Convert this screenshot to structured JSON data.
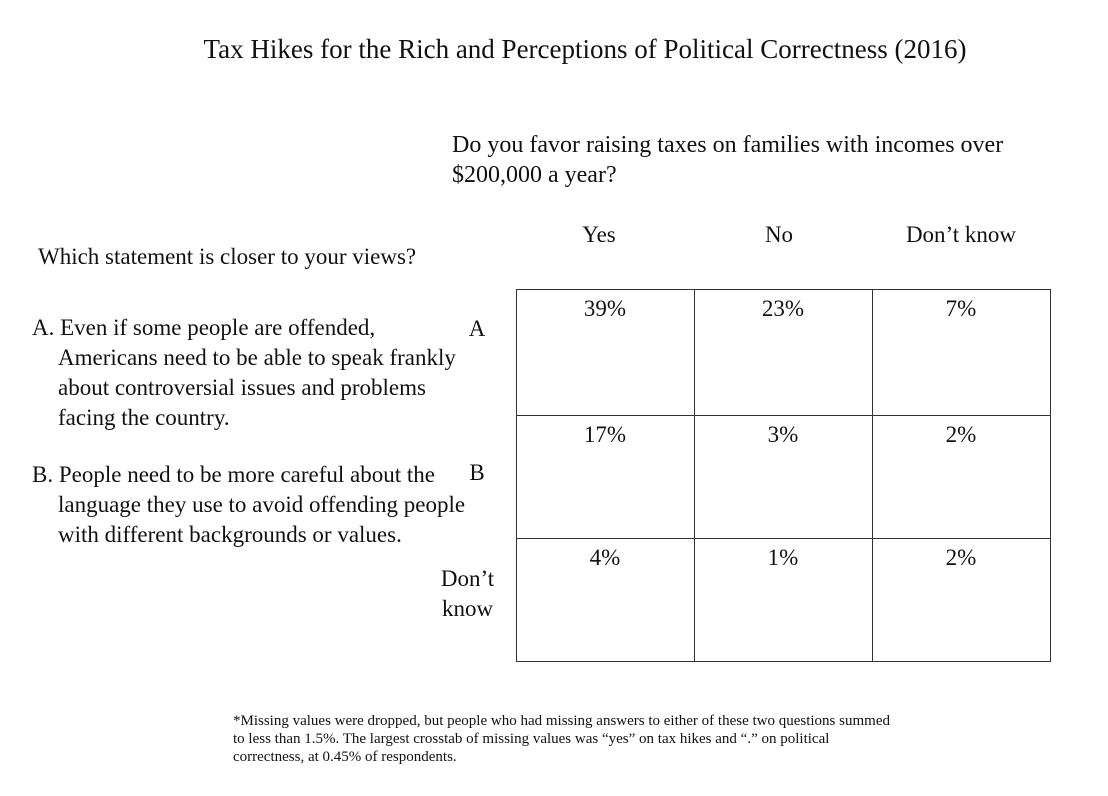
{
  "chart_data": {
    "type": "table",
    "title": "Tax Hikes for the Rich and Perceptions of Political Correctness (2016)",
    "column_question": "Do you favor raising taxes on families with incomes over $200,000 a year?",
    "row_question": "Which statement is closer to your views?",
    "statements": {
      "a": "A. Even if some people are offended, Americans need to be able to speak frankly about controversial issues and problems facing the country.",
      "b": "B. People need to be more careful about the language they use to avoid offending people with different backgrounds or values."
    },
    "columns": [
      "Yes",
      "No",
      "Don’t know"
    ],
    "rows": [
      "A",
      "B",
      "Don’t know"
    ],
    "cells": [
      [
        "39%",
        "23%",
        "7%"
      ],
      [
        "17%",
        "3%",
        "2%"
      ],
      [
        "4%",
        "1%",
        "2%"
      ]
    ],
    "footnote": "*Missing values were dropped, but people who had missing answers to either of these two questions summed to less than 1.5%. The largest crosstab of missing values was “yes” on tax hikes and “.” on political correctness, at 0.45% of respondents."
  }
}
